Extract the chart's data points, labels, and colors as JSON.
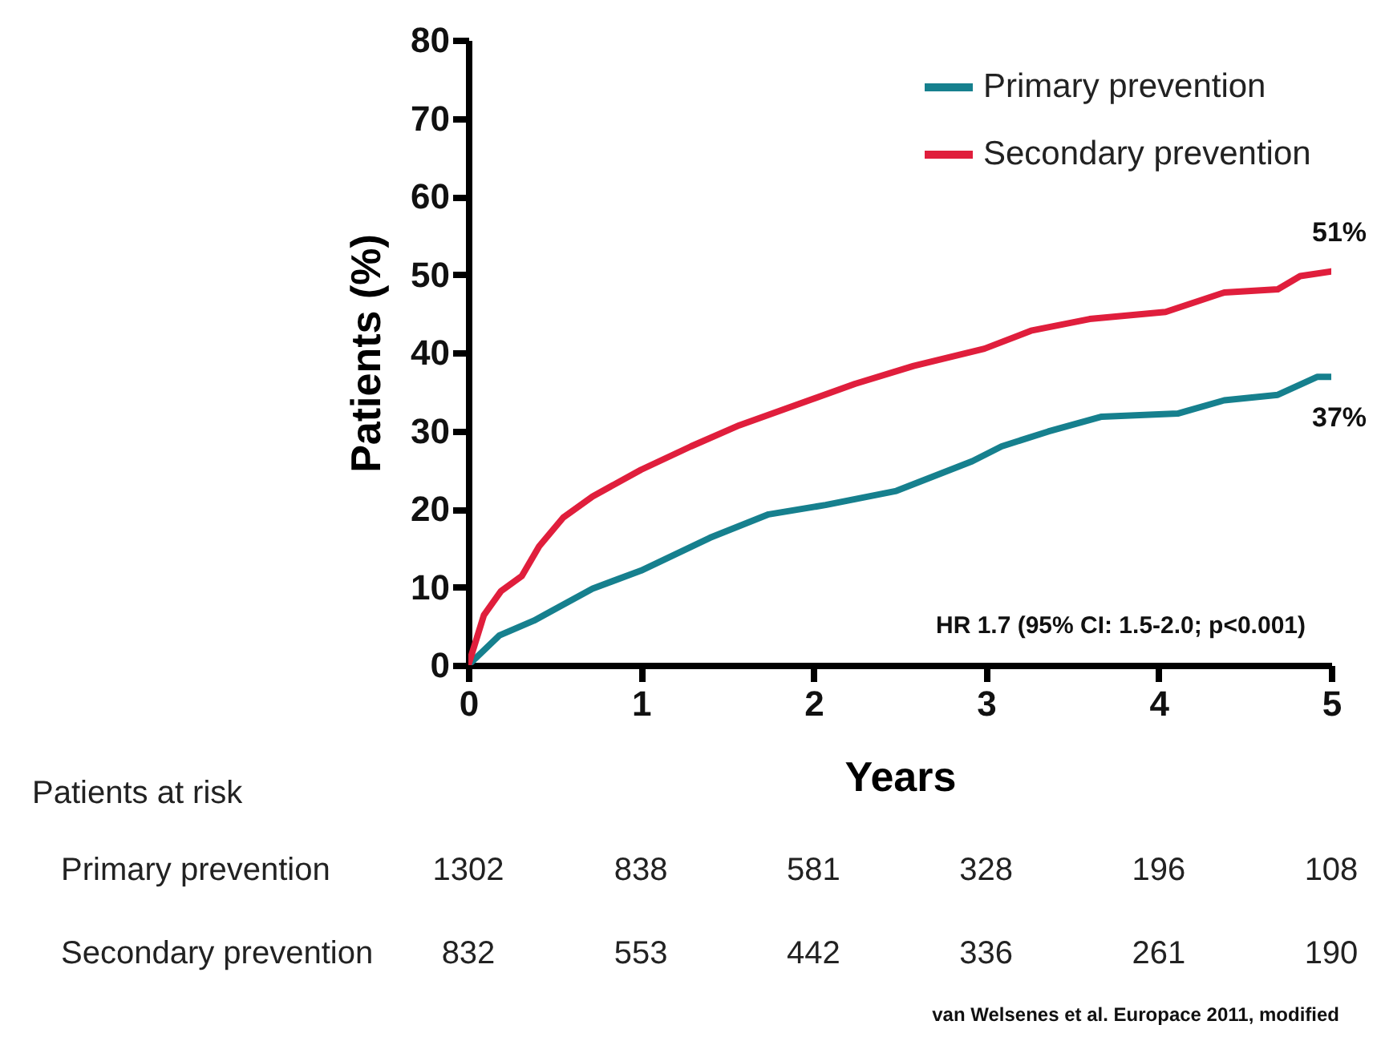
{
  "chart_data": {
    "type": "line",
    "xlabel": "Years",
    "ylabel": "Patients (%)",
    "xlim": [
      0,
      5
    ],
    "ylim": [
      0,
      80
    ],
    "xticks": [
      0,
      1,
      2,
      3,
      4,
      5
    ],
    "yticks": [
      0,
      10,
      20,
      30,
      40,
      50,
      60,
      70,
      80
    ],
    "grid": false,
    "legend": "top right",
    "marker": "none",
    "line_style": "solid",
    "series": [
      {
        "name": "Primary prevention",
        "color": "#16808e",
        "x": [
          0,
          0.18,
          0.38,
          0.72,
          1,
          1.4,
          1.74,
          2.07,
          2.48,
          2.92,
          3.09,
          3.36,
          3.67,
          4.11,
          4.38,
          4.69,
          4.92,
          5
        ],
        "values": [
          0,
          3.8,
          5.7,
          9.8,
          12.1,
          16.3,
          19.3,
          20.5,
          22.3,
          26.1,
          28,
          29.9,
          31.8,
          32.2,
          33.9,
          34.6,
          36.9,
          36.9
        ]
      },
      {
        "name": "Secondary prevention",
        "color": "#e01e3c",
        "x": [
          0,
          0.09,
          0.19,
          0.31,
          0.41,
          0.55,
          0.72,
          1,
          1.29,
          1.57,
          1.9,
          2.24,
          2.58,
          2.99,
          3.26,
          3.6,
          4.04,
          4.38,
          4.69,
          4.82,
          5
        ],
        "values": [
          0,
          6.4,
          9.5,
          11.4,
          15.2,
          18.9,
          21.6,
          25,
          28,
          30.7,
          33.3,
          36,
          38.3,
          40.5,
          42.8,
          44.3,
          45.2,
          47.7,
          48.1,
          49.8,
          50.4
        ]
      }
    ],
    "annotations": [
      "HR 1.7 (95% CI: 1.5-2.0; p<0.001)",
      {
        "text": "51%",
        "x": 5,
        "y": 50.4
      },
      {
        "text": "37%",
        "x": 5,
        "y": 36.9
      },
      "Patients at risk",
      "Primary prevention",
      "1302",
      "838",
      "581",
      "328",
      "196",
      "108",
      "Secondary prevention",
      "832",
      "553",
      "442",
      "336",
      "261",
      "190",
      "van Welsenes et al. Europace 2011, modified"
    ]
  }
}
